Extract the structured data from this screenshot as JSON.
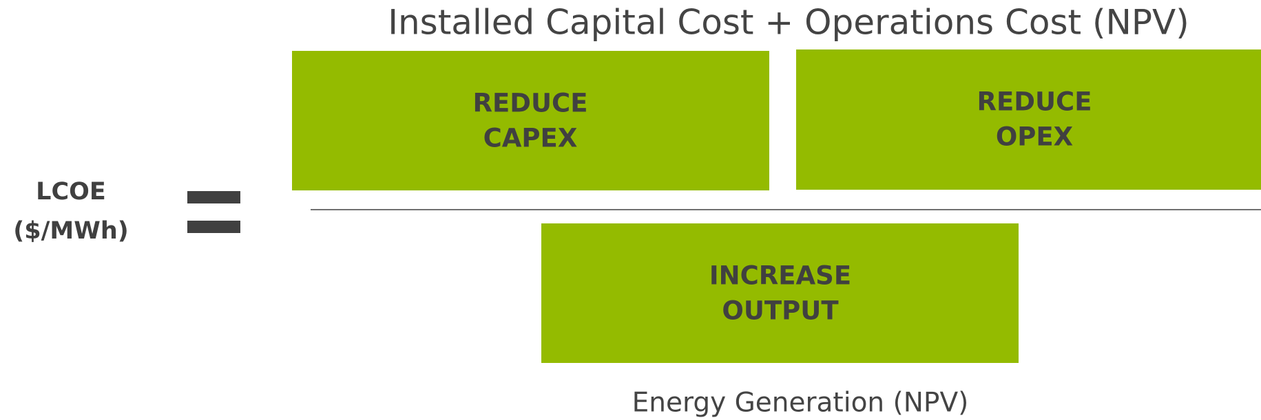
{
  "numerator": "Installed Capital Cost  +  Operations Cost (NPV)",
  "denominator": "Energy Generation (NPV)",
  "lhs": {
    "lines": [
      "LCOE",
      "($/MWh)"
    ]
  },
  "boxes": [
    {
      "lines": [
        "REDUCE",
        "CAPEX"
      ]
    },
    {
      "lines": [
        "REDUCE",
        "OPEX"
      ]
    },
    {
      "lines": [
        "INCREASE",
        "OUTPUT"
      ]
    }
  ]
}
